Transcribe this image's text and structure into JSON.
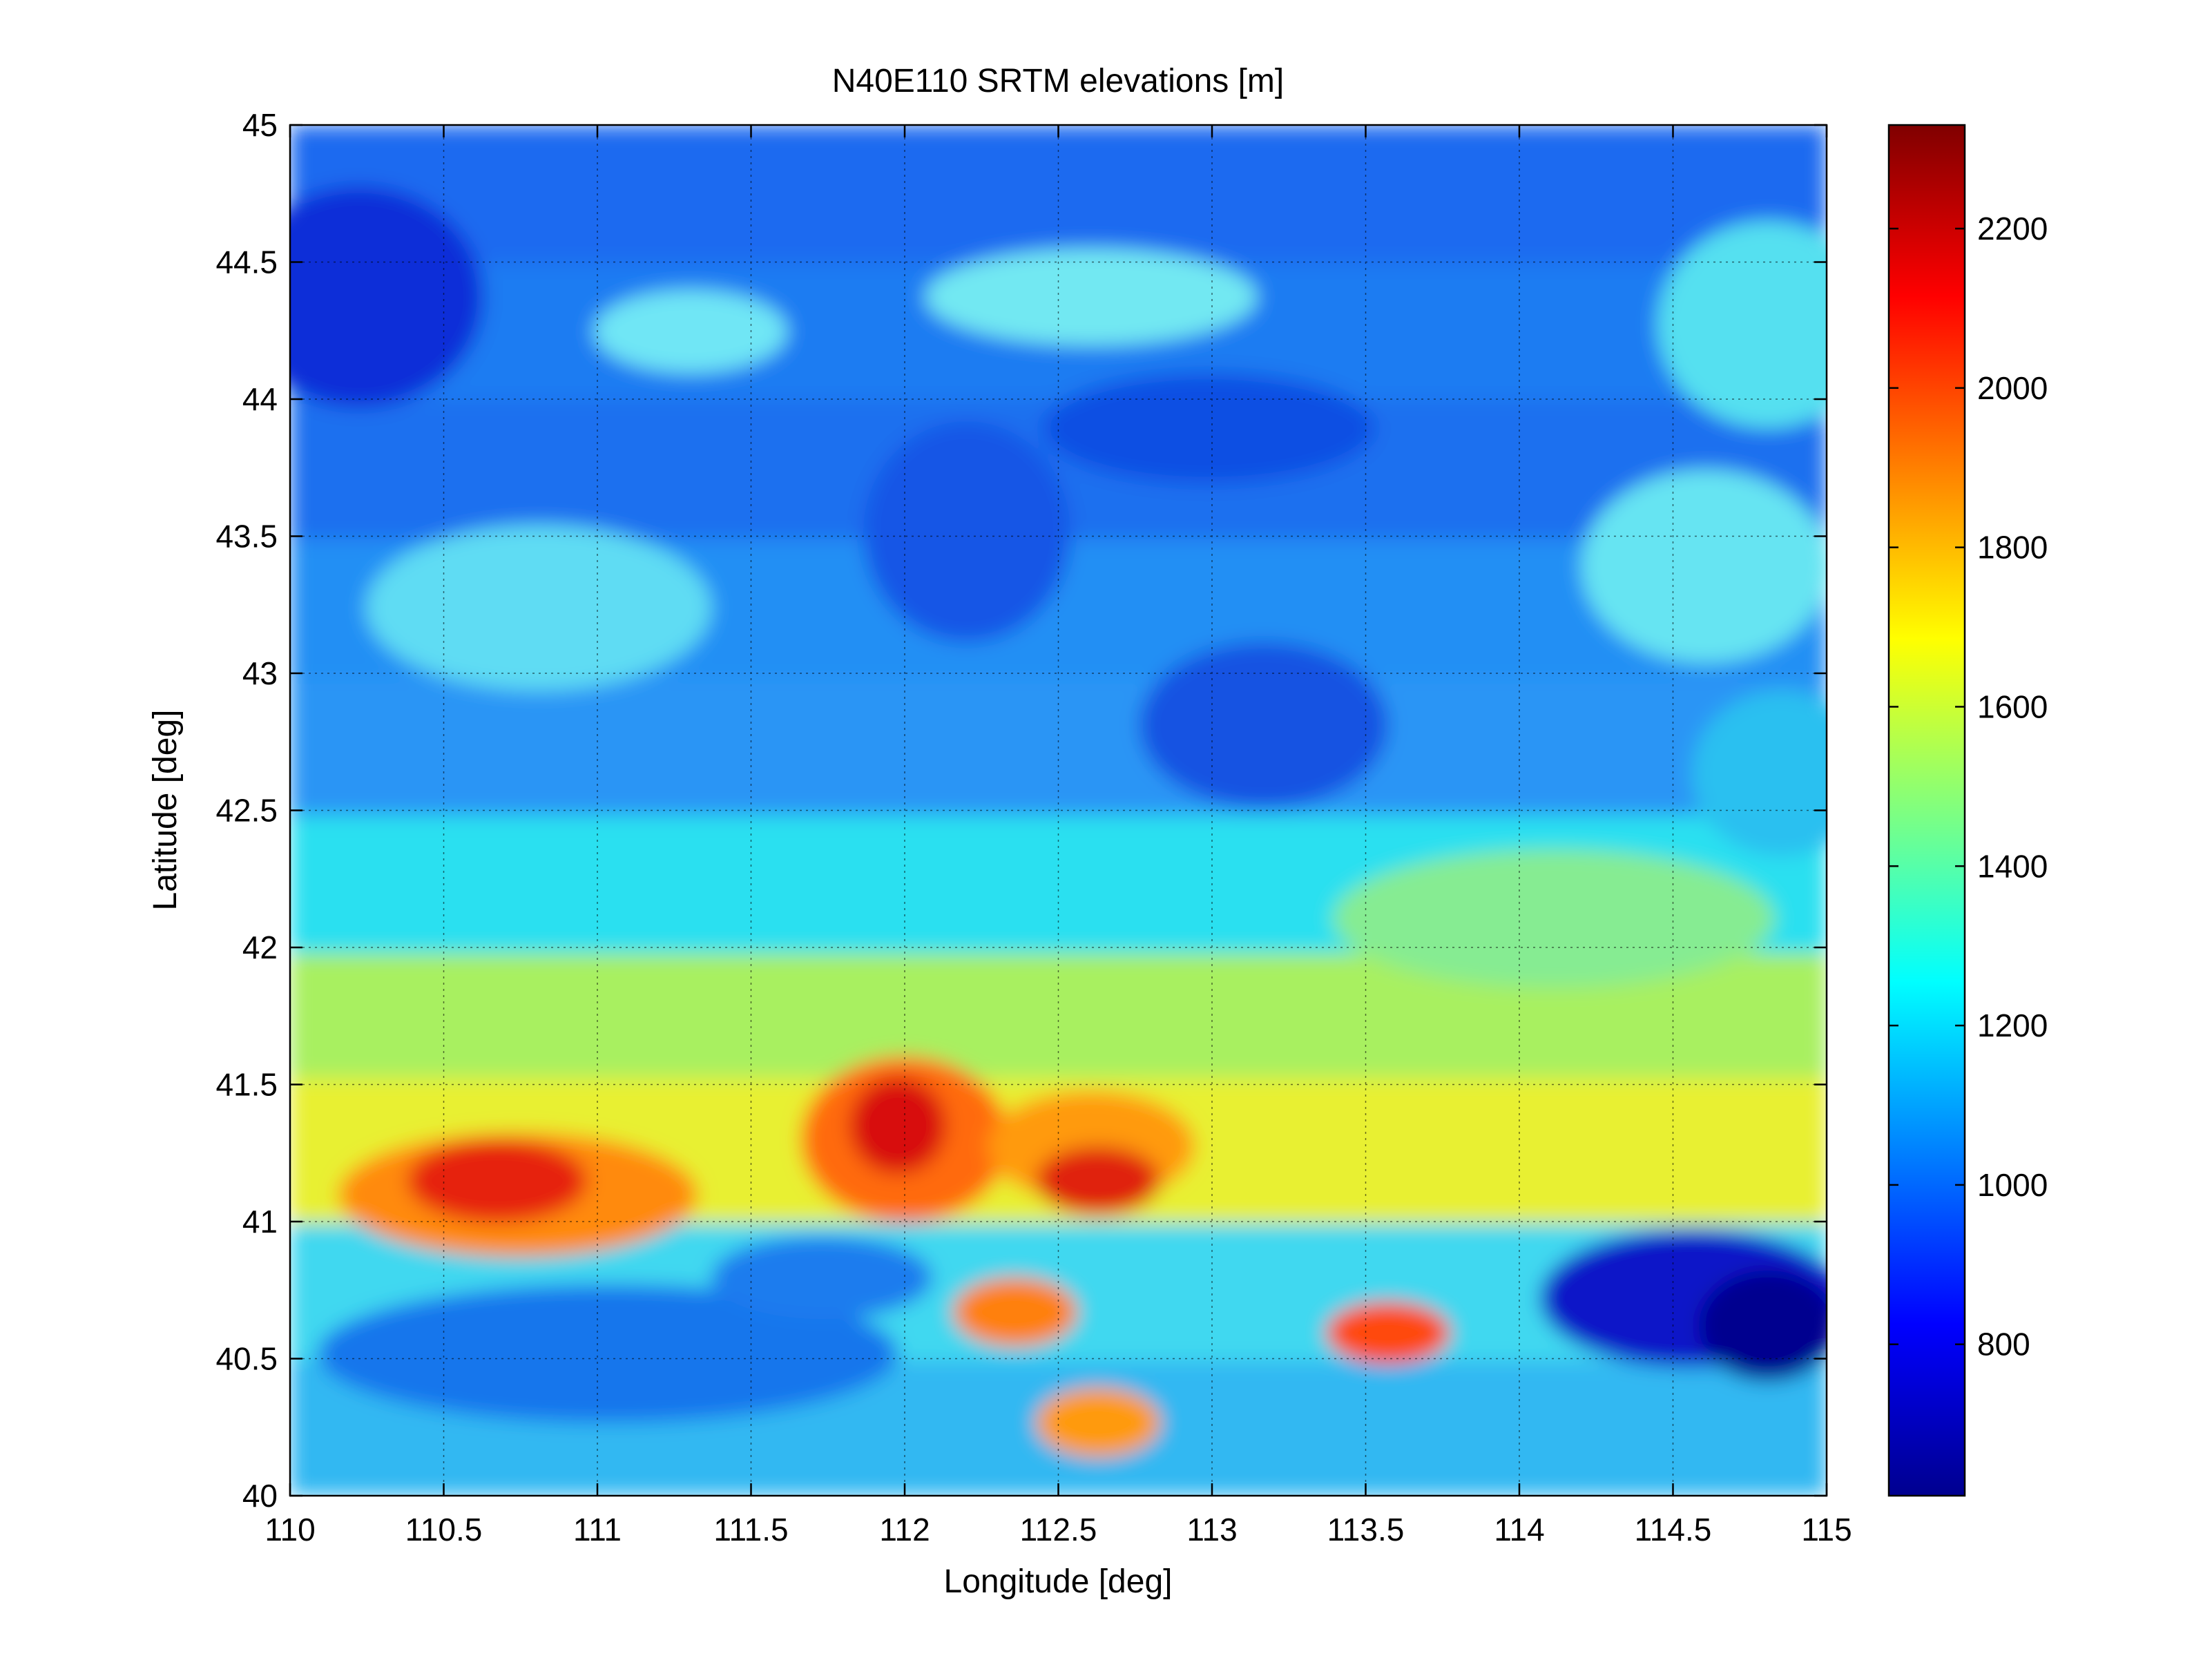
{
  "chart_data": {
    "type": "heatmap",
    "title": "N40E110 SRTM elevations [m]",
    "xlabel": "Longitude [deg]",
    "ylabel": "Latitude [deg]",
    "xlim": [
      110,
      115
    ],
    "ylim": [
      40,
      45
    ],
    "x_ticks": [
      "110",
      "110.5",
      "111",
      "111.5",
      "112",
      "112.5",
      "113",
      "113.5",
      "114",
      "114.5",
      "115"
    ],
    "y_ticks": [
      "40",
      "40.5",
      "41",
      "41.5",
      "42",
      "42.5",
      "43",
      "43.5",
      "44",
      "44.5",
      "45"
    ],
    "grid": true,
    "colormap": "jet",
    "colorbar": {
      "placement": "right",
      "range": [
        610,
        2330
      ],
      "ticks": [
        "800",
        "1000",
        "1200",
        "1400",
        "1600",
        "1800",
        "2000",
        "2200"
      ]
    },
    "elevation_by_lat_band": [
      {
        "lat": "45.0–44.5",
        "value_range": [
          700,
          1250
        ]
      },
      {
        "lat": "44.5–44.0",
        "value_range": [
          900,
          1250
        ]
      },
      {
        "lat": "44.0–43.5",
        "value_range": [
          950,
          1200
        ]
      },
      {
        "lat": "43.5–43.0",
        "value_range": [
          950,
          1250
        ]
      },
      {
        "lat": "43.0–42.5",
        "value_range": [
          1000,
          1200
        ]
      },
      {
        "lat": "42.5–42.0",
        "value_range": [
          1150,
          1450
        ]
      },
      {
        "lat": "42.0–41.5",
        "value_range": [
          1400,
          1650
        ]
      },
      {
        "lat": "41.5–41.0",
        "value_range": [
          1500,
          2300
        ]
      },
      {
        "lat": "41.0–40.5",
        "value_range": [
          700,
          2000
        ]
      },
      {
        "lat": "40.5–40.0",
        "value_range": [
          800,
          1900
        ]
      }
    ]
  }
}
